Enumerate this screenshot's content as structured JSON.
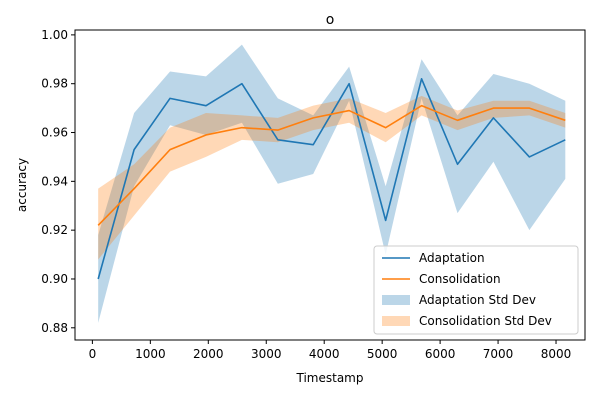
{
  "chart_data": {
    "type": "line",
    "title": "o",
    "xlabel": "Timestamp",
    "ylabel": "accuracy",
    "xlim": [
      -300,
      8500
    ],
    "ylim": [
      0.875,
      1.002
    ],
    "xticks": [
      0,
      1000,
      2000,
      3000,
      4000,
      5000,
      6000,
      7000,
      8000
    ],
    "yticks": [
      0.88,
      0.9,
      0.92,
      0.94,
      0.96,
      0.98,
      1.0
    ],
    "x": [
      100,
      720,
      1340,
      1960,
      2580,
      3200,
      3810,
      4430,
      5060,
      5680,
      6300,
      6920,
      7540,
      8160
    ],
    "legend_position": "lower-right",
    "grid": false,
    "series": [
      {
        "name": "Adaptation",
        "color": "#1f77b4",
        "values": [
          0.9,
          0.953,
          0.974,
          0.971,
          0.98,
          0.957,
          0.955,
          0.98,
          0.924,
          0.982,
          0.947,
          0.966,
          0.95,
          0.957
        ]
      },
      {
        "name": "Consolidation",
        "color": "#ff7f0e",
        "values": [
          0.922,
          0.937,
          0.953,
          0.959,
          0.962,
          0.961,
          0.966,
          0.969,
          0.962,
          0.971,
          0.965,
          0.97,
          0.97,
          0.965
        ]
      }
    ],
    "bands": [
      {
        "name": "Adaptation Std Dev",
        "color": "#1f77b4",
        "opacity": 0.3,
        "lower": [
          0.882,
          0.938,
          0.963,
          0.959,
          0.964,
          0.939,
          0.943,
          0.973,
          0.91,
          0.974,
          0.927,
          0.948,
          0.92,
          0.941
        ],
        "upper": [
          0.918,
          0.968,
          0.985,
          0.983,
          0.996,
          0.974,
          0.967,
          0.987,
          0.938,
          0.99,
          0.967,
          0.984,
          0.98,
          0.973
        ]
      },
      {
        "name": "Consolidation Std Dev",
        "color": "#ff7f0e",
        "opacity": 0.3,
        "lower": [
          0.908,
          0.926,
          0.944,
          0.95,
          0.957,
          0.956,
          0.961,
          0.964,
          0.956,
          0.967,
          0.961,
          0.966,
          0.967,
          0.962
        ],
        "upper": [
          0.937,
          0.947,
          0.962,
          0.968,
          0.967,
          0.966,
          0.971,
          0.974,
          0.968,
          0.975,
          0.969,
          0.973,
          0.973,
          0.968
        ]
      }
    ]
  }
}
